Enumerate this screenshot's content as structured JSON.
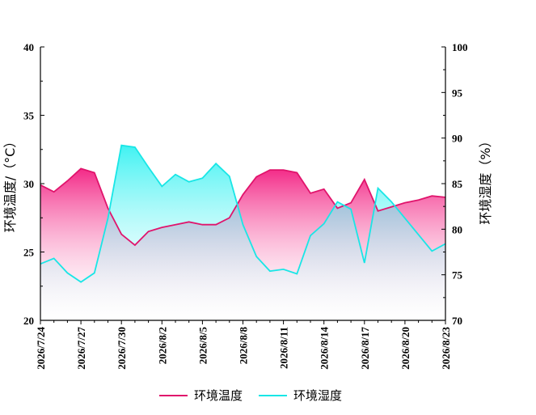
{
  "chart_data": {
    "type": "area",
    "x_dates": [
      "2026/7/24",
      "2026/7/25",
      "2026/7/26",
      "2026/7/27",
      "2026/7/28",
      "2026/7/29",
      "2026/7/30",
      "2026/7/31",
      "2026/8/1",
      "2026/8/2",
      "2026/8/3",
      "2026/8/4",
      "2026/8/5",
      "2026/8/6",
      "2026/8/7",
      "2026/8/8",
      "2026/8/9",
      "2026/8/10",
      "2026/8/11",
      "2026/8/12",
      "2026/8/13",
      "2026/8/14",
      "2026/8/15",
      "2026/8/16",
      "2026/8/17",
      "2026/8/18",
      "2026/8/19",
      "2026/8/20",
      "2026/8/21",
      "2026/8/22",
      "2026/8/23"
    ],
    "x_tick_labels": [
      "2026/7/24",
      "2026/7/27",
      "2026/7/30",
      "2026/8/2",
      "2026/8/5",
      "2026/8/8",
      "2026/8/11",
      "2026/8/14",
      "2026/8/17",
      "2026/8/20",
      "2026/8/23"
    ],
    "series": [
      {
        "name": "环境温度",
        "axis": "left",
        "color": "#e0146c",
        "values": [
          29.9,
          29.4,
          30.2,
          31.1,
          30.8,
          28.2,
          26.3,
          25.5,
          26.5,
          26.8,
          27.0,
          27.2,
          27.0,
          27.0,
          27.5,
          29.2,
          30.5,
          31.0,
          31.0,
          30.8,
          29.3,
          29.6,
          28.2,
          28.6,
          30.3,
          28.0,
          28.3,
          28.6,
          28.8,
          29.1,
          29.0
        ]
      },
      {
        "name": "环境湿度",
        "axis": "right",
        "color": "#19e6e6",
        "values": [
          76.2,
          76.8,
          75.2,
          74.2,
          75.2,
          81.2,
          89.2,
          89.0,
          86.8,
          84.7,
          86.0,
          85.2,
          85.6,
          87.2,
          85.8,
          80.5,
          77.0,
          75.4,
          75.6,
          75.1,
          79.3,
          80.6,
          83.0,
          82.2,
          76.3,
          84.5,
          83.0,
          81.2,
          79.4,
          77.6,
          78.4
        ]
      }
    ],
    "y_left": {
      "label": "环境温度/（°C）",
      "min": 20,
      "max": 40,
      "ticks": [
        20,
        25,
        30,
        35,
        40
      ]
    },
    "y_right": {
      "label": "环境湿度（%）",
      "min": 70,
      "max": 100,
      "ticks": [
        70,
        75,
        80,
        85,
        90,
        95,
        100
      ]
    },
    "legend_position": "bottom",
    "grid": false
  }
}
